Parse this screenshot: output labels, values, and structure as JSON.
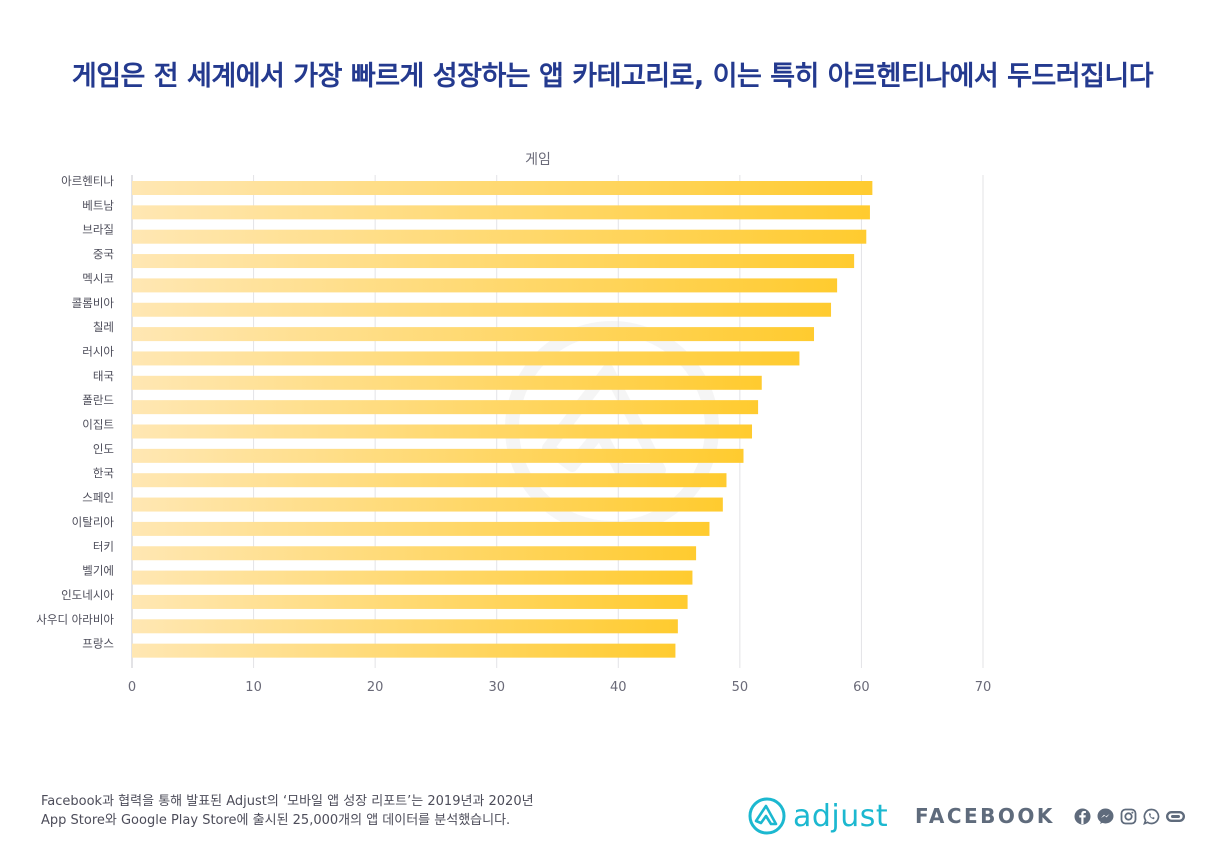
{
  "header": {
    "title": "게임은 전 세계에서 가장 빠르게 성장하는 앱 카테고리로, 이는 특히 아르헨티나에서 두드러집니다"
  },
  "chart_data": {
    "type": "bar",
    "orientation": "horizontal",
    "title": "게임",
    "xlabel": "",
    "ylabel": "",
    "xlim": [
      0,
      70
    ],
    "grid": true,
    "x_ticks": [
      "0",
      "10",
      "20",
      "30",
      "40",
      "50",
      "60",
      "70"
    ],
    "categories": [
      "아르헨티나",
      "베트남",
      "브라질",
      "중국",
      "멕시코",
      "콜롬비아",
      "칠레",
      "러시아",
      "태국",
      "폴란드",
      "이집트",
      "인도",
      "한국",
      "스페인",
      "이탈리아",
      "터키",
      "벨기에",
      "인도네시아",
      "사우디 아라비아",
      "프랑스"
    ],
    "values": [
      60.9,
      60.7,
      60.4,
      59.4,
      58.0,
      57.5,
      56.1,
      54.9,
      51.8,
      51.5,
      51.0,
      50.3,
      48.9,
      48.6,
      47.5,
      46.4,
      46.1,
      45.7,
      44.9,
      44.7
    ],
    "colors": {
      "bar_start": "#ffe7b3",
      "bar_end": "#ffcb2f",
      "grid": "#e3e3e6",
      "label": "#4d4d5a"
    }
  },
  "footer": {
    "note_line1": "Facebook과 협력을 통해 발표된 Adjust의 ‘모바일 앱 성장 리포트’는 2019년과 2020년",
    "note_line2": "App Store와 Google Play Store에 출시된 25,000개의 앱 데이터를 분석했습니다.",
    "adjust_logo_text": "adjust",
    "facebook_logo_text": "FACEBOOK",
    "brand_icons": [
      "facebook-icon",
      "messenger-icon",
      "instagram-icon",
      "whatsapp-icon",
      "oculus-icon"
    ],
    "adjust_color": "#1cb8d0",
    "facebook_color": "#5f6b7c"
  }
}
